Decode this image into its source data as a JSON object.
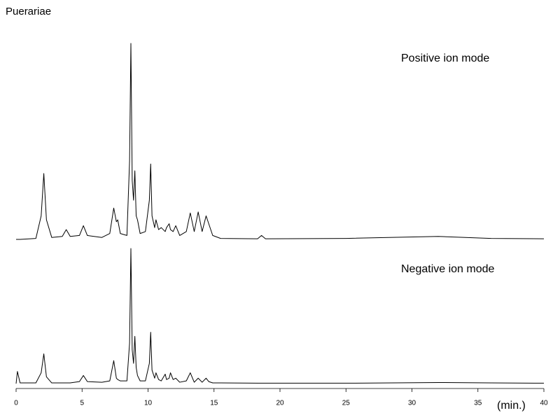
{
  "chart_data": {
    "type": "line",
    "title": "Puerariae",
    "xlabel": "(min.)",
    "xlim": [
      0,
      40
    ],
    "xticks": [
      0,
      5,
      10,
      15,
      20,
      25,
      30,
      35,
      40
    ],
    "ylim": [
      0,
      100
    ],
    "x": [
      0,
      0.1,
      0.3,
      1.5,
      1.9,
      2.1,
      2.3,
      2.7,
      3.5,
      3.8,
      4.1,
      4.8,
      5.1,
      5.4,
      6.5,
      7.1,
      7.4,
      7.6,
      7.7,
      7.9,
      8.4,
      8.6,
      8.7,
      8.8,
      8.9,
      9.0,
      9.1,
      9.2,
      9.4,
      9.8,
      10.1,
      10.2,
      10.3,
      10.5,
      10.6,
      10.8,
      11.0,
      11.3,
      11.4,
      11.6,
      11.7,
      11.9,
      12.1,
      12.4,
      12.9,
      13.2,
      13.5,
      13.8,
      14.1,
      14.4,
      14.6,
      14.9,
      15.5,
      18.3,
      18.6,
      18.9,
      25,
      32,
      36,
      40
    ],
    "series": [
      {
        "name": "Positive ion mode",
        "color": "#000000",
        "values": [
          0,
          0,
          0,
          0.5,
          12,
          33.6,
          10,
          1,
          1.5,
          5,
          1.5,
          2,
          7,
          2,
          1,
          3,
          16,
          9,
          10,
          3,
          2,
          40,
          100,
          30,
          20,
          35,
          12,
          10,
          3,
          4,
          20,
          38.5,
          12,
          6,
          10,
          5,
          6,
          4,
          6,
          8,
          5,
          4,
          7,
          2,
          4,
          13.5,
          4,
          14,
          4,
          12,
          8,
          2,
          0.5,
          0.3,
          2,
          0.3,
          0.5,
          1.5,
          0.5,
          0.3
        ]
      },
      {
        "name": "Negative ion mode",
        "color": "#000000",
        "values": [
          0,
          9,
          0.5,
          0.5,
          8,
          22,
          5,
          0.5,
          0.5,
          0.5,
          0.5,
          1.5,
          6,
          1.5,
          1,
          2,
          17,
          4,
          3,
          2,
          2,
          30,
          100,
          25,
          15,
          35,
          12,
          6,
          2,
          2,
          15,
          38,
          10,
          4,
          8,
          3,
          2,
          7,
          3,
          4,
          8,
          3,
          4,
          1,
          2,
          8,
          1,
          4,
          1,
          4,
          1.5,
          0.5,
          0.5,
          0.3,
          0.3,
          0.3,
          0.3,
          0.8,
          0.5,
          0.3
        ]
      }
    ]
  }
}
